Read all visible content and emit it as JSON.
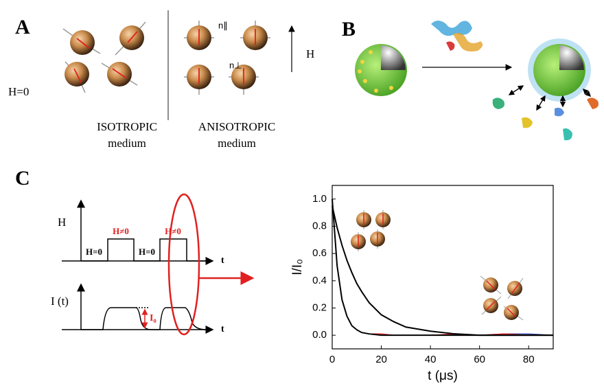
{
  "panel_a": {
    "label": "A",
    "h_zero": "H=0",
    "isotropic": "ISOTROPIC",
    "isotropic_medium": "medium",
    "anisotropic": "ANISOTROPIC",
    "anisotropic_medium": "medium",
    "n_parallel": "n∥",
    "n_perp": "n⊥",
    "field": "H"
  },
  "panel_b": {
    "label": "B"
  },
  "panel_c": {
    "label": "C",
    "schematic": {
      "h_axis": "H",
      "h_zero_1": "H=0",
      "h_on_1": "H≠0",
      "h_zero_2": "H=0",
      "h_on_2": "H≠0",
      "t_1": "t",
      "i_axis": "I (t)",
      "i0": "I₀",
      "t_2": "t"
    }
  },
  "chart_data": {
    "type": "line",
    "xlabel": "t (μs)",
    "ylabel": "I/I₀",
    "x": [
      0,
      2,
      4,
      6,
      8,
      10,
      12,
      15,
      20,
      25,
      30,
      40,
      50,
      60,
      70,
      80,
      90
    ],
    "series": [
      {
        "color": "#3a4fb0",
        "values": [
          0.95,
          0.79,
          0.66,
          0.55,
          0.46,
          0.38,
          0.32,
          0.24,
          0.15,
          0.1,
          0.06,
          0.03,
          0.01,
          0.0,
          0.01,
          0.01,
          0.0
        ]
      },
      {
        "color": "#e02020",
        "values": [
          1.0,
          0.51,
          0.26,
          0.14,
          0.07,
          0.04,
          0.02,
          0.01,
          0.01,
          0.0,
          0.0,
          0.0,
          0.01,
          0.0,
          0.01,
          0.0,
          0.0
        ]
      },
      {
        "color": "#000000",
        "values": [
          0.95,
          0.79,
          0.66,
          0.55,
          0.46,
          0.38,
          0.32,
          0.24,
          0.15,
          0.1,
          0.06,
          0.03,
          0.01,
          0.0,
          0.0,
          0.0,
          0.0
        ]
      },
      {
        "color": "#000000",
        "values": [
          1.0,
          0.51,
          0.26,
          0.14,
          0.07,
          0.04,
          0.02,
          0.01,
          0.0,
          0.0,
          0.0,
          0.0,
          0.0,
          0.0,
          0.0,
          0.0,
          0.0
        ]
      }
    ],
    "xlim": [
      0,
      90
    ],
    "ylim": [
      -0.1,
      1.1
    ],
    "xticks": [
      0,
      20,
      40,
      60,
      80
    ],
    "yticks": [
      {
        "value": 0,
        "label": "0.0"
      },
      0.2,
      0.4,
      0.6,
      0.8,
      {
        "value": 1,
        "label": "1.0"
      }
    ]
  }
}
